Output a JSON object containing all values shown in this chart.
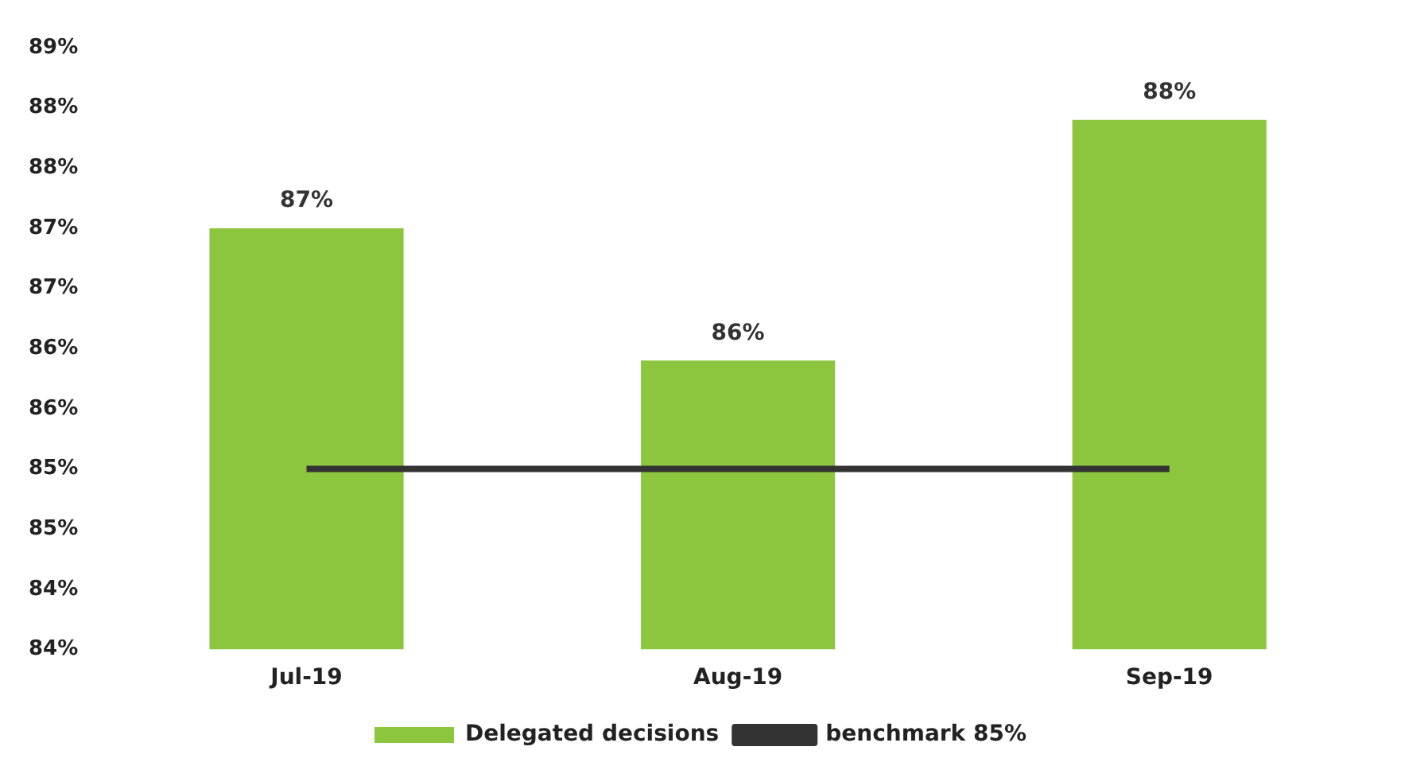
{
  "chart_data": {
    "type": "bar",
    "categories": [
      "Jul-19",
      "Aug-19",
      "Sep-19"
    ],
    "series": [
      {
        "name": "Delegated decisions",
        "color": "#8cc63f",
        "values": [
          87.0,
          85.9,
          87.9
        ],
        "value_labels": [
          "87%",
          "86%",
          "88%"
        ]
      },
      {
        "name": "benchmark 85%",
        "type": "line",
        "color": "#333333",
        "values": [
          85,
          85,
          85
        ]
      }
    ],
    "ylim": [
      83.5,
      88.5
    ],
    "yticks": [
      {
        "value": 83.5,
        "label": "84%"
      },
      {
        "value": 84,
        "label": "84%"
      },
      {
        "value": 84.5,
        "label": "85%"
      },
      {
        "value": 85,
        "label": "85%"
      },
      {
        "value": 85.5,
        "label": "86%"
      },
      {
        "value": 86,
        "label": "86%"
      },
      {
        "value": 86.5,
        "label": "87%"
      },
      {
        "value": 87,
        "label": "87%"
      },
      {
        "value": 87.5,
        "label": "88%"
      },
      {
        "value": 88,
        "label": "88%"
      },
      {
        "value": 88.5,
        "label": "89%"
      }
    ],
    "grid": false,
    "legend": "bottom",
    "marker": "none",
    "line_style": "solid"
  }
}
